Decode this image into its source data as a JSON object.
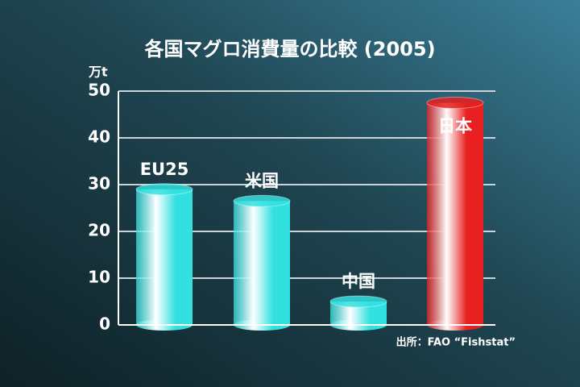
{
  "chart_data": {
    "type": "bar",
    "title": "各国マグロ消費量の比較 (2005)",
    "y_axis_label": "万t",
    "source": "出所：FAO “Fishstat”",
    "categories": [
      "EU25",
      "米国",
      "中国",
      "日本"
    ],
    "values": [
      29,
      26.5,
      5,
      47.5
    ],
    "colors": [
      "#33e0e0",
      "#33e0e0",
      "#33e0e0",
      "#e82020"
    ],
    "ylim": [
      0,
      50
    ],
    "yticks": [
      0,
      10,
      20,
      30,
      40,
      50
    ],
    "grid": true
  }
}
